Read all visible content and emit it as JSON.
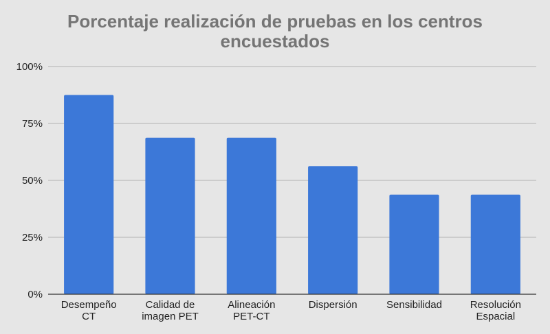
{
  "chart_data": {
    "type": "bar",
    "title_lines": [
      "Porcentaje realización de pruebas en los centros",
      "encuestados"
    ],
    "categories": [
      [
        "Desempeño",
        "CT"
      ],
      [
        "Calidad de",
        "imagen PET"
      ],
      [
        "Alineación",
        "PET-CT"
      ],
      [
        "Dispersión"
      ],
      [
        "Sensibilidad"
      ],
      [
        "Resolución",
        "Espacial"
      ]
    ],
    "values": [
      87.5,
      68.75,
      68.75,
      56.25,
      43.75,
      43.75
    ],
    "unit": "%",
    "ylim": [
      0,
      100
    ],
    "yticks": [
      0,
      25,
      50,
      75,
      100
    ],
    "ytick_labels": [
      "0%",
      "25%",
      "50%",
      "75%",
      "100%"
    ],
    "grid": true,
    "legend": "none",
    "bar_color": "#3c78d8"
  }
}
